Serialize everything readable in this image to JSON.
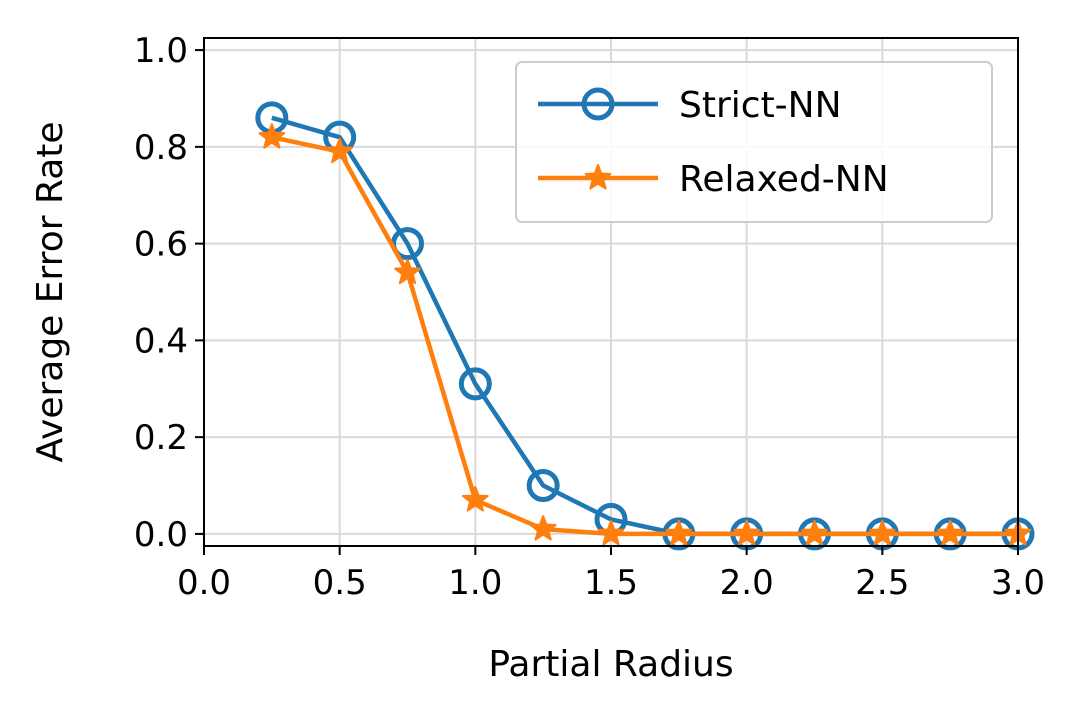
{
  "chart_data": {
    "type": "line",
    "xlabel": "Partial Radius",
    "ylabel": "Average Error Rate",
    "xlim": [
      0.0,
      3.0
    ],
    "ylim": [
      -0.025,
      1.025
    ],
    "xticks": [
      "0.0",
      "0.5",
      "1.0",
      "1.5",
      "2.0",
      "2.5",
      "3.0"
    ],
    "yticks": [
      "0.0",
      "0.2",
      "0.4",
      "0.6",
      "0.8",
      "1.0"
    ],
    "grid": true,
    "legend_position": "top-right",
    "x": [
      0.25,
      0.5,
      0.75,
      1.0,
      1.25,
      1.5,
      1.75,
      2.0,
      2.25,
      2.5,
      2.75,
      3.0
    ],
    "series": [
      {
        "name": "Strict-NN",
        "color": "#1f77b4",
        "marker": "circle",
        "values": [
          0.86,
          0.82,
          0.6,
          0.31,
          0.1,
          0.03,
          0.0,
          0.0,
          0.0,
          0.0,
          0.0,
          0.0
        ]
      },
      {
        "name": "Relaxed-NN",
        "color": "#ff7f0e",
        "marker": "star",
        "values": [
          0.82,
          0.79,
          0.54,
          0.07,
          0.01,
          0.0,
          0.0,
          0.0,
          0.0,
          0.0,
          0.0,
          0.0
        ]
      }
    ]
  }
}
